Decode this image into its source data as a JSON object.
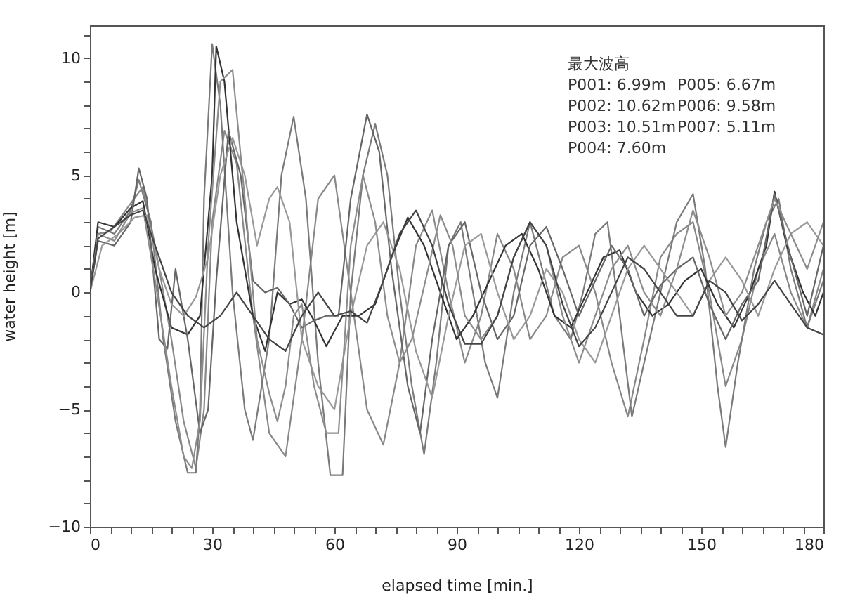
{
  "chart_data": {
    "type": "line",
    "xlabel": "elapsed time [min.]",
    "ylabel": "water height [m]",
    "xlim": [
      0,
      180
    ],
    "ylim": [
      -10,
      11.4
    ],
    "xticks": [
      0,
      {
        "value": 5,
        "label": null
      },
      {
        "value": 10,
        "label": null
      },
      {
        "value": 15,
        "label": null
      },
      {
        "value": 20,
        "label": null
      },
      {
        "value": 25,
        "label": null
      },
      30,
      {
        "value": 35,
        "label": null
      },
      {
        "value": 40,
        "label": null
      },
      {
        "value": 45,
        "label": null
      },
      {
        "value": 50,
        "label": null
      },
      {
        "value": 55,
        "label": null
      },
      60,
      {
        "value": 65,
        "label": null
      },
      {
        "value": 70,
        "label": null
      },
      {
        "value": 75,
        "label": null
      },
      {
        "value": 80,
        "label": null
      },
      {
        "value": 85,
        "label": null
      },
      90,
      {
        "value": 95,
        "label": null
      },
      {
        "value": 100,
        "label": null
      },
      {
        "value": 105,
        "label": null
      },
      {
        "value": 110,
        "label": null
      },
      {
        "value": 115,
        "label": null
      },
      120,
      {
        "value": 125,
        "label": null
      },
      {
        "value": 130,
        "label": null
      },
      {
        "value": 135,
        "label": null
      },
      {
        "value": 140,
        "label": null
      },
      {
        "value": 145,
        "label": null
      },
      150,
      {
        "value": 155,
        "label": null
      },
      {
        "value": 160,
        "label": null
      },
      {
        "value": 165,
        "label": null
      },
      {
        "value": 170,
        "label": null
      },
      {
        "value": 175,
        "label": null
      },
      180
    ],
    "yticks": [
      -10,
      {
        "value": -9,
        "label": null
      },
      {
        "value": -8,
        "label": null
      },
      {
        "value": -7,
        "label": null
      },
      {
        "value": -6,
        "label": null
      },
      -5,
      {
        "value": -4,
        "label": null
      },
      {
        "value": -3,
        "label": null
      },
      {
        "value": -2,
        "label": null
      },
      {
        "value": -1,
        "label": null
      },
      0,
      {
        "value": 1,
        "label": null
      },
      {
        "value": 2,
        "label": null
      },
      {
        "value": 3,
        "label": null
      },
      {
        "value": 4,
        "label": null
      },
      5,
      {
        "value": 6,
        "label": null
      },
      {
        "value": 7,
        "label": null
      },
      {
        "value": 8,
        "label": null
      },
      {
        "value": 9,
        "label": null
      },
      10,
      {
        "value": 11,
        "label": null
      }
    ],
    "grid": false,
    "annotations": [
      "最大波高",
      "P001: 6.99m",
      "P002: 10.62m",
      "P003: 10.51m",
      "P004: 7.60m",
      "P005: 6.67m",
      "P006: 9.58m",
      "P007: 5.11m"
    ],
    "series": [
      {
        "color": "#888888",
        "x": [
          0,
          2,
          5,
          10,
          13,
          16,
          20,
          23,
          26,
          28,
          30,
          33,
          36,
          40,
          44,
          48,
          52,
          56,
          60,
          64,
          68,
          72,
          76,
          80,
          84,
          88,
          92,
          96,
          100,
          104,
          108,
          112,
          116,
          120,
          124,
          128,
          132,
          136,
          140,
          144,
          148,
          152,
          156,
          160,
          164,
          168,
          172,
          176,
          180
        ],
        "values": [
          0,
          2.5,
          2.6,
          3.8,
          4.5,
          2,
          -2,
          -5.5,
          -7.5,
          -5,
          3,
          6.9,
          5.5,
          -1,
          -6,
          -7,
          -2,
          4,
          5,
          0,
          -5,
          -6.5,
          -3,
          2,
          3.5,
          0,
          -3,
          -1,
          2.5,
          1,
          -2,
          -1,
          1.5,
          2,
          0,
          -3,
          -5.3,
          -2,
          1.5,
          2.5,
          3,
          0,
          -4,
          -2,
          1,
          2.5,
          0,
          -1.5,
          1
        ]
      },
      {
        "color": "#7a7a7a",
        "x": [
          0,
          2,
          6,
          10,
          12,
          15,
          18,
          21,
          24,
          26,
          27,
          28,
          30,
          32,
          35,
          38,
          40,
          44,
          47,
          50,
          53,
          56,
          59,
          62,
          64,
          67,
          70,
          73,
          76,
          79,
          82,
          85,
          88,
          91,
          94,
          97,
          100,
          104,
          108,
          111,
          114,
          118,
          121,
          124,
          127,
          130,
          133,
          136,
          140,
          144,
          148,
          151,
          154,
          156,
          159,
          163,
          166,
          169,
          172,
          176,
          180
        ],
        "values": [
          0,
          2.8,
          2.5,
          3.5,
          4.8,
          3,
          -2,
          -5.5,
          -7.7,
          -7.7,
          -5,
          4,
          10.6,
          8,
          0,
          -5,
          -6.3,
          -2,
          5,
          7.5,
          4,
          -3,
          -7.8,
          -7.8,
          0,
          5,
          7.2,
          5,
          0,
          -4,
          -6.9,
          -3,
          2,
          3,
          0,
          -3,
          -4.5,
          0,
          3,
          1,
          -1,
          -2,
          0,
          2.5,
          3,
          -1,
          -5.3,
          -3,
          0,
          3,
          4.2,
          1,
          -4,
          -6.6,
          -3,
          1,
          3,
          4,
          1,
          -1.5,
          0.5
        ]
      },
      {
        "color": "#333333",
        "x": [
          0,
          2,
          6,
          10,
          13,
          16,
          20,
          24,
          27,
          30,
          31,
          33,
          36,
          40,
          43,
          46,
          49,
          52,
          55,
          58,
          62,
          66,
          70,
          74,
          78,
          82,
          86,
          90,
          94,
          98,
          102,
          106,
          110,
          114,
          118,
          122,
          126,
          130,
          134,
          138,
          142,
          146,
          150,
          154,
          158,
          162,
          166,
          168,
          171,
          175,
          178,
          180
        ],
        "values": [
          0,
          3,
          2.8,
          3.6,
          3.9,
          1,
          -1.5,
          -1.8,
          -1,
          5,
          10.5,
          9,
          3,
          -1,
          -2.5,
          0,
          -0.5,
          -0.3,
          -1.2,
          -2.3,
          -1,
          -1,
          -0.5,
          1.5,
          3.2,
          2,
          0,
          -2,
          -1,
          0.5,
          2,
          2.5,
          1,
          -1,
          -1.5,
          0,
          1.5,
          1.8,
          0,
          -1,
          -0.5,
          0.5,
          1,
          -0.5,
          -1.5,
          0,
          2,
          4.3,
          2,
          0,
          -1,
          0
        ]
      },
      {
        "color": "#666666",
        "x": [
          0,
          2,
          6,
          10,
          12,
          14,
          17,
          19,
          21,
          24,
          27,
          29,
          31,
          34,
          37,
          40,
          43,
          46,
          49,
          52,
          55,
          58,
          61,
          64,
          68,
          71,
          74,
          78,
          81,
          84,
          88,
          92,
          96,
          100,
          104,
          108,
          112,
          116,
          120,
          124,
          128,
          132,
          136,
          140,
          144,
          148,
          152,
          156,
          160,
          164,
          168,
          172,
          176,
          180
        ],
        "values": [
          0,
          2.2,
          2,
          3,
          5.3,
          4,
          -2,
          -2.4,
          1,
          -2,
          -6,
          -5,
          0.5,
          6.9,
          5,
          0.5,
          0,
          0.2,
          -0.5,
          -1.5,
          -1.2,
          -1,
          -1,
          4,
          7.6,
          6,
          1,
          -4,
          -6,
          -2,
          2,
          3,
          0,
          -2,
          -1,
          2,
          2.8,
          1,
          -1,
          0.5,
          2,
          1,
          -1,
          0.3,
          1,
          1.5,
          -0.5,
          -2,
          -0.5,
          0.5,
          4.2,
          1.5,
          -1,
          2
        ]
      },
      {
        "color": "#999999",
        "x": [
          0,
          3,
          7,
          11,
          14,
          17,
          20,
          23,
          26,
          29,
          32,
          35,
          38,
          41,
          44,
          46,
          49,
          52,
          56,
          60,
          64,
          68,
          72,
          76,
          80,
          84,
          88,
          92,
          96,
          100,
          104,
          108,
          112,
          116,
          120,
          124,
          128,
          132,
          136,
          140,
          144,
          148,
          152,
          156,
          160,
          164,
          168,
          172,
          176,
          180
        ],
        "values": [
          0,
          2,
          2.5,
          3.2,
          3.3,
          1,
          -0.5,
          -1,
          -0.2,
          1.5,
          5,
          6.6,
          5,
          2,
          4,
          4.5,
          3,
          -2,
          -4,
          -5,
          -1,
          2,
          3,
          1,
          -2.5,
          -4.5,
          -1,
          2,
          2.5,
          0,
          -2,
          -1,
          1,
          0,
          -2,
          -3,
          -1,
          1,
          2,
          1,
          0,
          -1,
          0.5,
          1.5,
          0.5,
          -1,
          1,
          2.5,
          3,
          2
        ]
      },
      {
        "color": "#8c8c8c",
        "x": [
          0,
          2,
          6,
          10,
          13,
          16,
          20,
          23,
          25,
          27,
          29,
          32,
          35,
          38,
          41,
          44,
          46,
          48,
          50,
          52,
          55,
          58,
          61,
          64,
          67,
          70,
          73,
          76,
          79,
          83,
          86,
          89,
          92,
          96,
          100,
          104,
          108,
          112,
          116,
          120,
          124,
          128,
          132,
          136,
          140,
          144,
          148,
          152,
          156,
          160,
          164,
          168,
          172,
          176,
          180
        ],
        "values": [
          0,
          2.5,
          2.2,
          3.4,
          3.6,
          0.5,
          -4,
          -7,
          -7.5,
          -5.5,
          2,
          9,
          9.5,
          4,
          -2,
          -4.3,
          -5.5,
          -4,
          -1,
          -0.5,
          -4,
          -6,
          -6,
          2,
          5,
          3,
          -1,
          -3,
          -2,
          1,
          3.3,
          2,
          -1,
          -2,
          -1,
          1.5,
          3,
          2,
          -1,
          -3,
          -1,
          1,
          2,
          0,
          -1,
          1,
          3.5,
          1.5,
          -1,
          0,
          2,
          4,
          2.5,
          1,
          3
        ]
      },
      {
        "color": "#444444",
        "x": [
          0,
          2,
          6,
          10,
          13,
          16,
          20,
          24,
          28,
          32,
          36,
          40,
          44,
          48,
          52,
          56,
          60,
          64,
          68,
          72,
          76,
          80,
          84,
          88,
          92,
          96,
          100,
          104,
          108,
          112,
          116,
          120,
          124,
          128,
          132,
          136,
          140,
          144,
          148,
          152,
          156,
          160,
          164,
          168,
          172,
          176,
          180
        ],
        "values": [
          0,
          2.3,
          2.8,
          3.3,
          3.5,
          2,
          0,
          -1,
          -1.5,
          -1,
          0,
          -1,
          -2,
          -2.5,
          -1,
          0,
          -1,
          -0.8,
          -1.3,
          0.5,
          2.5,
          3.5,
          2,
          -0.5,
          -2.2,
          -2.2,
          -1,
          1.5,
          3,
          2,
          -0.5,
          -2.3,
          -1.5,
          0,
          1.5,
          1,
          0,
          -1,
          -1,
          0.5,
          0,
          -1.2,
          -0.5,
          0.5,
          -0.5,
          -1.5,
          -1.8
        ]
      }
    ]
  }
}
